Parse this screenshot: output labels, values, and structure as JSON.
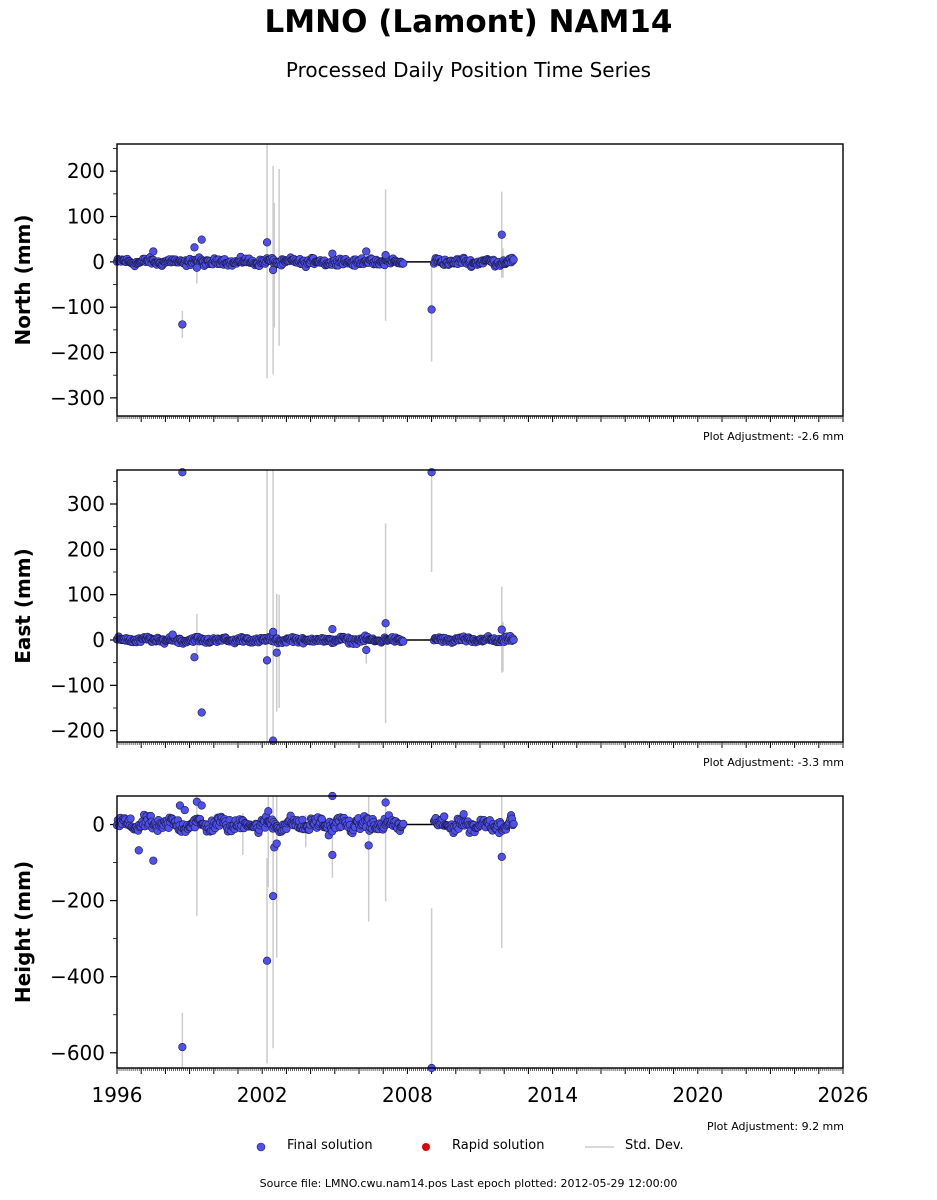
{
  "title": "LMNO (Lamont) NAM14",
  "subtitle": "Processed Daily Position Time Series",
  "legend": {
    "final": "Final solution",
    "rapid": "Rapid solution",
    "std": "Std. Dev."
  },
  "colors": {
    "final": "#5050ee",
    "rapid": "#dd0000",
    "std": "#cccccc"
  },
  "source": "Source file: LMNO.cwu.nam14.pos  Last epoch plotted: 2012-05-29 12:00:00",
  "chart_data": [
    {
      "type": "scatter",
      "ylabel": "North (mm)",
      "ylim": [
        -340,
        260
      ],
      "xlim": [
        1996,
        2026
      ],
      "yticks": [
        "200",
        "100",
        "0",
        "−100",
        "−200",
        "−300"
      ],
      "yticks_values": [
        200,
        100,
        0,
        -100,
        -200,
        -300
      ],
      "adjustment": "Plot Adjustment: -2.6 mm",
      "gaps": [
        [
          2007.9,
          2009.1
        ]
      ],
      "noise": 5,
      "outliers": [
        {
          "x": 1997.5,
          "y": 23
        },
        {
          "x": 1998.7,
          "y": -138,
          "err": 30
        },
        {
          "x": 1999.2,
          "y": 32
        },
        {
          "x": 1999.3,
          "y": -13
        },
        {
          "x": 1999.5,
          "y": 49
        },
        {
          "x": 2002.2,
          "y": 43,
          "err": 300
        },
        {
          "x": 2002.45,
          "y": -18,
          "err": 230
        },
        {
          "x": 2004.9,
          "y": 18
        },
        {
          "x": 2006.3,
          "y": 23
        },
        {
          "x": 2007.1,
          "y": 15,
          "err": 145
        },
        {
          "x": 2009.0,
          "y": -105,
          "err": 115
        },
        {
          "x": 2011.9,
          "y": 60,
          "err": 95
        }
      ],
      "errbars": [
        {
          "x": 2002.5,
          "ylo": -145,
          "yhi": 130
        },
        {
          "x": 2002.7,
          "ylo": -185,
          "yhi": 205
        },
        {
          "x": 1999.3,
          "ylo": -48,
          "yhi": 18
        },
        {
          "x": 2011.95,
          "ylo": -35,
          "yhi": 30
        }
      ]
    },
    {
      "type": "scatter",
      "ylabel": "East (mm)",
      "ylim": [
        -225,
        375
      ],
      "xlim": [
        1996,
        2026
      ],
      "yticks": [
        "300",
        "200",
        "100",
        "0",
        "−100",
        "−200"
      ],
      "yticks_values": [
        300,
        200,
        100,
        0,
        -100,
        -200
      ],
      "adjustment": "Plot Adjustment: -3.3 mm",
      "gaps": [
        [
          2007.9,
          2009.1
        ]
      ],
      "noise": 4,
      "outliers": [
        {
          "x": 1998.7,
          "y": 370
        },
        {
          "x": 1998.3,
          "y": 12
        },
        {
          "x": 1999.2,
          "y": -38
        },
        {
          "x": 1999.5,
          "y": -160
        },
        {
          "x": 2002.2,
          "y": -45,
          "err": 500
        },
        {
          "x": 2002.45,
          "y": 18,
          "err": 400
        },
        {
          "x": 2002.45,
          "y": -222
        },
        {
          "x": 2002.6,
          "y": -28,
          "err": 130
        },
        {
          "x": 2004.9,
          "y": 24
        },
        {
          "x": 2006.3,
          "y": -22,
          "err": 30
        },
        {
          "x": 2007.1,
          "y": 37,
          "err": 220
        },
        {
          "x": 2009.0,
          "y": 370,
          "err": 220
        },
        {
          "x": 2011.9,
          "y": 23,
          "err": 95
        }
      ],
      "errbars": [
        {
          "x": 1999.3,
          "ylo": -30,
          "yhi": 58
        },
        {
          "x": 2002.7,
          "ylo": -150,
          "yhi": 100
        },
        {
          "x": 2011.95,
          "ylo": -70,
          "yhi": 40
        }
      ]
    },
    {
      "type": "scatter",
      "ylabel": "Height (mm)",
      "ylim": [
        -640,
        75
      ],
      "xlim": [
        1996,
        2026
      ],
      "xticks": [
        "1996",
        "2002",
        "2008",
        "2014",
        "2020",
        "2026"
      ],
      "xticks_values": [
        1996,
        2002,
        2008,
        2014,
        2020,
        2026
      ],
      "yticks": [
        "0",
        "−200",
        "−400",
        "−600"
      ],
      "yticks_values": [
        0,
        -200,
        -400,
        -600
      ],
      "adjustment": "Plot Adjustment: 9.2 mm",
      "gaps": [
        [
          2007.9,
          2009.1
        ]
      ],
      "noise": 12,
      "outliers": [
        {
          "x": 1996.9,
          "y": -68
        },
        {
          "x": 1997.5,
          "y": -95
        },
        {
          "x": 1998.6,
          "y": 50
        },
        {
          "x": 1998.7,
          "y": -585,
          "err": 90
        },
        {
          "x": 1998.8,
          "y": 38
        },
        {
          "x": 1999.3,
          "y": 60,
          "err": 300
        },
        {
          "x": 1999.5,
          "y": 50
        },
        {
          "x": 2002.2,
          "y": -358,
          "err": 270
        },
        {
          "x": 2002.25,
          "y": 35,
          "err": 200
        },
        {
          "x": 2002.45,
          "y": -188,
          "err": 400
        },
        {
          "x": 2002.5,
          "y": -60
        },
        {
          "x": 2002.6,
          "y": -50,
          "err": 300
        },
        {
          "x": 2004.9,
          "y": 75
        },
        {
          "x": 2004.9,
          "y": -80,
          "err": 60
        },
        {
          "x": 2006.4,
          "y": -55,
          "err": 200
        },
        {
          "x": 2007.1,
          "y": 58,
          "err": 260
        },
        {
          "x": 2009.0,
          "y": -640,
          "err": 420
        },
        {
          "x": 2011.9,
          "y": -85,
          "err": 240
        }
      ],
      "errbars": [
        {
          "x": 2001.2,
          "ylo": -80,
          "yhi": 30
        },
        {
          "x": 2003.8,
          "ylo": -60,
          "yhi": 25
        }
      ]
    }
  ]
}
